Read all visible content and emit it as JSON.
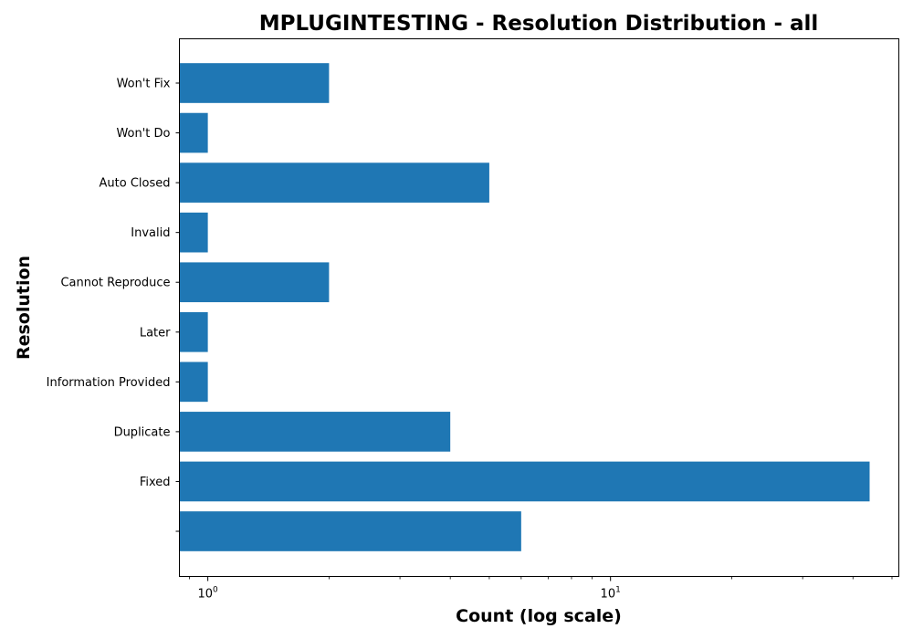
{
  "chart_data": {
    "type": "bar",
    "orientation": "horizontal",
    "title": "MPLUGINTESTING - Resolution Distribution - all",
    "xlabel": "Count (log scale)",
    "ylabel": "Resolution",
    "x_scale": "log",
    "xlim": [
      0.85,
      52
    ],
    "x_ticks": [
      {
        "value": 1,
        "base": "10",
        "exp": "0"
      },
      {
        "value": 10,
        "base": "10",
        "exp": "1"
      }
    ],
    "categories": [
      "Won't Fix",
      "Won't Do",
      "Auto Closed",
      "Invalid",
      "Cannot Reproduce",
      "Later",
      "Information Provided",
      "Duplicate",
      "Fixed",
      ""
    ],
    "values": [
      2,
      1,
      5,
      1,
      2,
      1,
      1,
      4,
      44,
      6
    ],
    "bar_color": "#1f77b4",
    "grid": false,
    "legend": "none"
  }
}
